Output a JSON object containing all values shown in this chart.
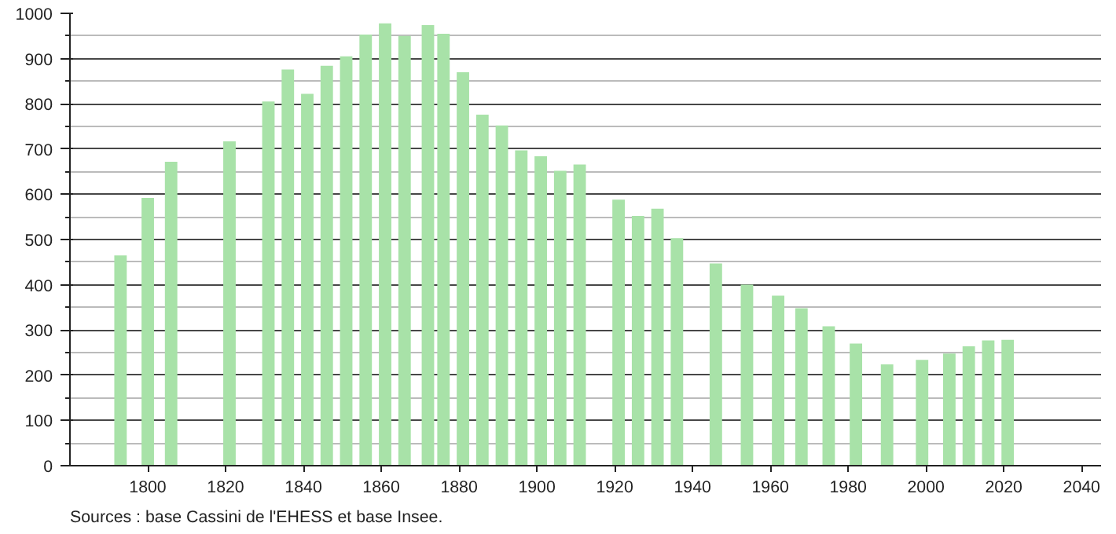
{
  "chart_data": {
    "type": "bar",
    "x": [
      1793,
      1800,
      1806,
      1821,
      1831,
      1836,
      1841,
      1846,
      1851,
      1856,
      1861,
      1866,
      1872,
      1876,
      1881,
      1886,
      1891,
      1896,
      1901,
      1906,
      1911,
      1921,
      1926,
      1931,
      1936,
      1946,
      1954,
      1962,
      1968,
      1975,
      1982,
      1990,
      1999,
      2006,
      2011,
      2016,
      2021
    ],
    "values": [
      465,
      592,
      672,
      717,
      805,
      876,
      822,
      884,
      905,
      953,
      978,
      950,
      974,
      955,
      870,
      776,
      752,
      697,
      684,
      652,
      666,
      588,
      552,
      568,
      503,
      447,
      400,
      376,
      348,
      308,
      270,
      224,
      234,
      248,
      264,
      277,
      278
    ],
    "color": "#a8e2a8",
    "xlim": [
      1780,
      2045
    ],
    "xticks": [
      1800,
      1820,
      1840,
      1860,
      1880,
      1900,
      1920,
      1940,
      1960,
      1980,
      2000,
      2020,
      2040
    ],
    "ylim": [
      0,
      1000
    ],
    "yticks": [
      0,
      100,
      200,
      300,
      400,
      500,
      600,
      700,
      800,
      900,
      1000
    ],
    "grid": "y",
    "annotations": [
      "Sources : base Cassini de l'EHESS et base Insee."
    ]
  }
}
